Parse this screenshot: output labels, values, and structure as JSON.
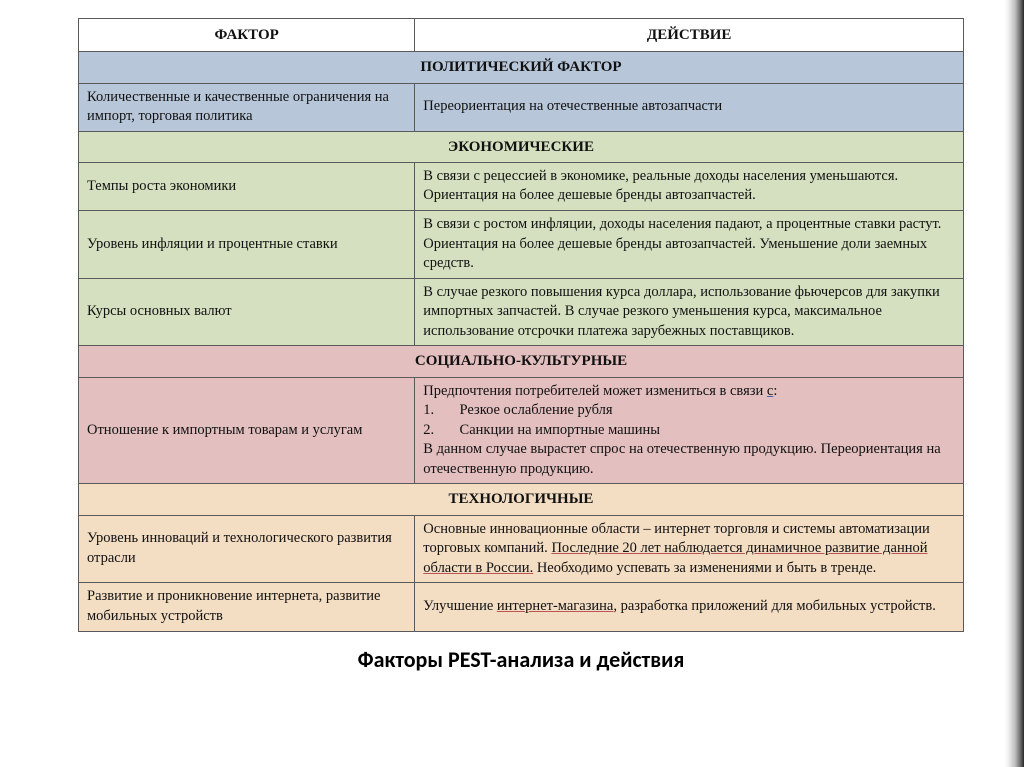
{
  "header": {
    "factor": "ФАКТОР",
    "action": "ДЕЙСТВИЕ"
  },
  "colors": {
    "political": "#b7c6d9",
    "economic": "#d4e0bf",
    "social": "#e3bfbf",
    "tech": "#f3ddc3",
    "border": "#5a5a5a"
  },
  "sections": [
    {
      "title": "ПОЛИТИЧЕСКИЙ ФАКТОР",
      "colorKey": "political",
      "rows": [
        {
          "factor": "Количественные и качественные ограничения на импорт, торговая политика",
          "action": "Переориентация на отечественные автозапчасти"
        }
      ]
    },
    {
      "title": "ЭКОНОМИЧЕСКИЕ",
      "colorKey": "economic",
      "rows": [
        {
          "factor": "Темпы роста экономики",
          "action": "В связи с рецессией в экономике, реальные доходы населения уменьшаются. Ориентация на более дешевые бренды автозапчастей."
        },
        {
          "factor": "Уровень инфляции и процентные ставки",
          "action": "В связи с ростом инфляции, доходы населения падают, а процентные ставки растут. Ориентация на более дешевые бренды автозапчастей. Уменьшение доли заемных средств."
        },
        {
          "factor": "Курсы основных валют",
          "action": "В случае резкого повышения курса доллара, использование фьючерсов для закупки импортных запчастей. В случае резкого уменьшения курса, максимальное использование отсрочки платежа зарубежных поставщиков."
        }
      ]
    },
    {
      "title": "СОЦИАЛЬНО-КУЛЬТУРНЫЕ",
      "colorKey": "social",
      "rows": [
        {
          "factor": "Отношение к импортным товарам и услугам",
          "action_html": "Предпочтения потребителей может измениться в связи <span class=\"underline-blue\">с</span>:<br>1.&nbsp;&nbsp;&nbsp;&nbsp;&nbsp;&nbsp;&nbsp;Резкое ослабление рубля<br>2.&nbsp;&nbsp;&nbsp;&nbsp;&nbsp;&nbsp;&nbsp;Санкции на импортные машины<br>В данном случае вырастет спрос на отечественную продукцию. Переориентация на отечественную продукцию."
        }
      ]
    },
    {
      "title": "ТЕХНОЛОГИЧНЫЕ",
      "colorKey": "tech",
      "rows": [
        {
          "factor": "Уровень инноваций и технологического развития отрасли",
          "action_html": "Основные инновационные области – интернет торговля и системы автоматизации торговых компаний. <span class=\"underline\">Последние 20 лет наблюдается динамичное развитие данной области в России.</span> Необходимо успевать за изменениями и быть в тренде."
        },
        {
          "factor": "Развитие и проникновение интернета, развитие мобильных устройств",
          "action_html": "Улучшение <span class=\"underline\">интернет-магазина</span>, разработка приложений для мобильных устройств."
        }
      ]
    }
  ],
  "caption": "Факторы PEST-анализа и действия"
}
